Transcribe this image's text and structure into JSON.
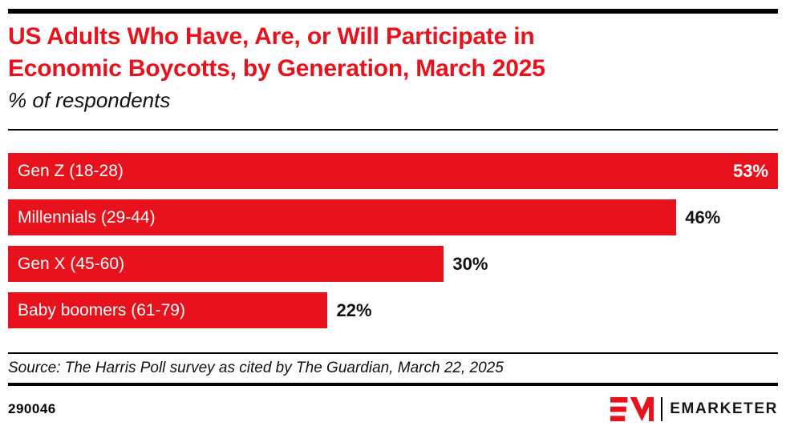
{
  "page": {
    "title_line1": "US Adults Who Have, Are, or Will Participate in",
    "title_line2": "Economic Boycotts, by Generation, March 2025",
    "subtitle": "% of respondents",
    "source": "Source: The Harris Poll survey as cited by The Guardian, March 22, 2025",
    "chart_id": "290046",
    "brand": {
      "logo_mark_icon": "em-monogram-icon",
      "logo_text": "EMARKETER"
    },
    "colors": {
      "accent_red": "#E8121C",
      "rule_black": "#000000",
      "value_text_black": "#111111",
      "bar_label_white": "#ffffff"
    }
  },
  "chart_data": {
    "type": "bar",
    "orientation": "horizontal",
    "title": "US Adults Who Have, Are, or Will Participate in Economic Boycotts, by Generation, March 2025",
    "subtitle": "% of respondents",
    "categories": [
      "Gen Z (18-28)",
      "Millennials (29-44)",
      "Gen X (45-60)",
      "Baby boomers (61-79)"
    ],
    "values": [
      53,
      46,
      30,
      22
    ],
    "value_labels": [
      "53%",
      "46%",
      "30%",
      "22%"
    ],
    "unit": "%",
    "xlim": [
      0,
      53
    ],
    "bar_color": "#E8121C",
    "grid": false,
    "legend": false,
    "value_label_position": [
      "inside-end",
      "outside-end",
      "outside-end",
      "outside-end"
    ],
    "source": "Source: The Harris Poll survey as cited by The Guardian, March 22, 2025"
  }
}
